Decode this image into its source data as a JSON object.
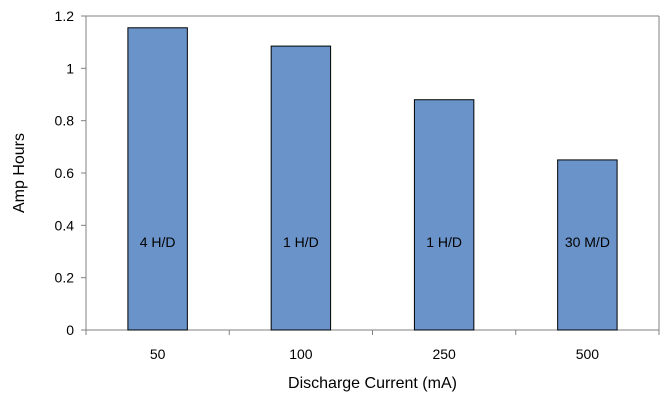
{
  "chart_data": {
    "type": "bar",
    "categories": [
      "50",
      "100",
      "250",
      "500"
    ],
    "values": [
      1.155,
      1.085,
      0.88,
      0.65
    ],
    "bar_labels": [
      "4 H/D",
      "1 H/D",
      "1 H/D",
      "30 M/D"
    ],
    "xlabel": "Discharge Current (mA)",
    "ylabel": "Amp Hours",
    "ylim": [
      0,
      1.2
    ],
    "yticks": [
      "0",
      "0.2",
      "0.4",
      "0.6",
      "0.8",
      "1",
      "1.2"
    ],
    "grid": false,
    "legend": "none",
    "bar_color": "#6a93c9",
    "bar_edge_color": "#000000"
  }
}
